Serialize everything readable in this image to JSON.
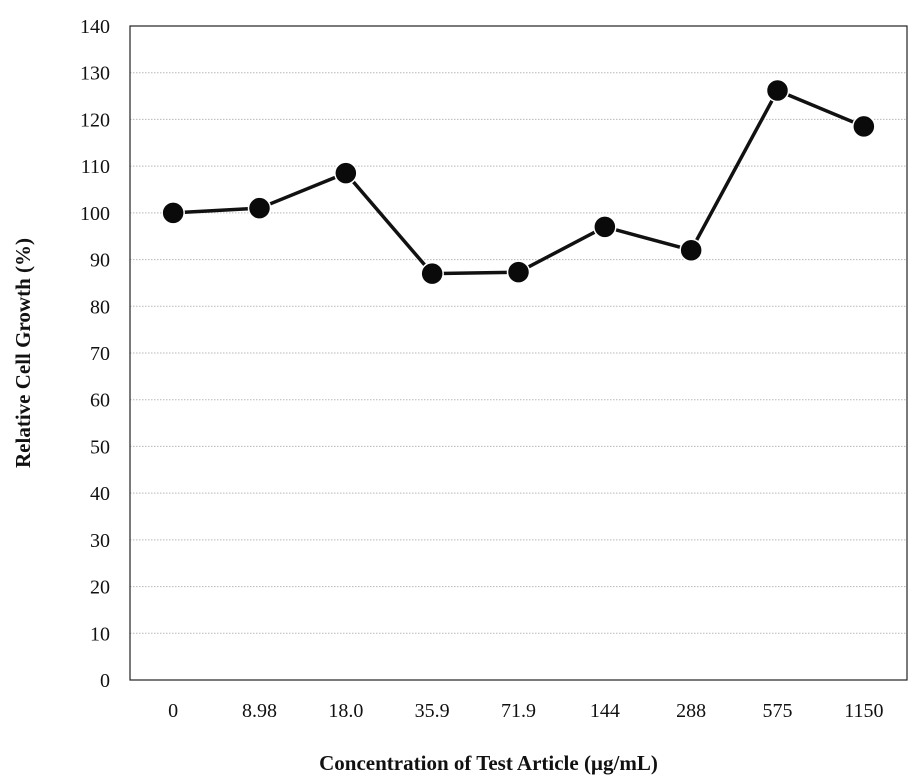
{
  "chart_data": {
    "type": "line",
    "title": "",
    "xlabel": "Concentration of Test Article (µg/mL)",
    "ylabel": "Relative Cell Growth (%)",
    "categories": [
      "0",
      "8.98",
      "18.0",
      "35.9",
      "71.9",
      "144",
      "288",
      "575",
      "1150"
    ],
    "series": [
      {
        "values": [
          100,
          101,
          108.5,
          87,
          87.3,
          97,
          92,
          126.2,
          118.5
        ]
      }
    ],
    "ylim": [
      0,
      140
    ],
    "yticks": [
      0,
      10,
      20,
      30,
      40,
      50,
      60,
      70,
      80,
      90,
      100,
      110,
      120,
      130,
      140
    ],
    "grid": true,
    "legend": "none",
    "colors": {
      "line": "#111111",
      "marker": "#0a0a0a",
      "grid": "#b8b8b8"
    }
  }
}
